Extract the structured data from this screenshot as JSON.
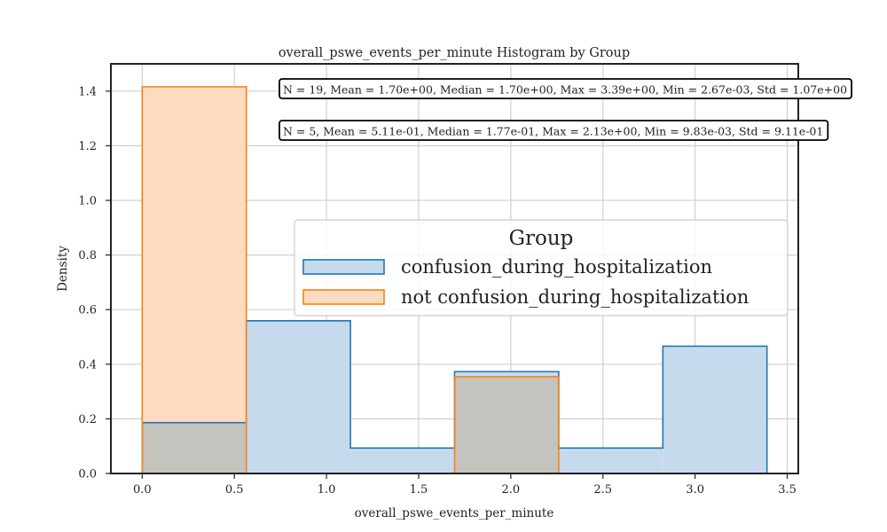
{
  "chart_data": {
    "type": "histogram",
    "title": "overall_pswe_events_per_minute Histogram by Group",
    "xlabel": "overall_pswe_events_per_minute",
    "ylabel": "Density",
    "xlim": [
      -0.17,
      3.56
    ],
    "ylim": [
      0,
      1.5
    ],
    "xticks": [
      "0.0",
      "0.5",
      "1.0",
      "1.5",
      "2.0",
      "2.5",
      "3.0",
      "3.5"
    ],
    "yticks": [
      "0.0",
      "0.2",
      "0.4",
      "0.6",
      "0.8",
      "1.0",
      "1.2",
      "1.4"
    ],
    "grid": true,
    "bin_edges": [
      0.0,
      0.565,
      1.13,
      1.695,
      2.26,
      2.825,
      3.39
    ],
    "series": [
      {
        "name": "confusion_during_hospitalization",
        "values": [
          0.186,
          0.559,
          0.093,
          0.373,
          0.093,
          0.466
        ],
        "color": "#1f77b4",
        "fill": "#c5dbed"
      },
      {
        "name": "not confusion_during_hospitalization",
        "values": [
          1.416,
          0.0,
          0.0,
          0.354,
          0.0,
          0.0
        ],
        "color": "#ff7f0e",
        "fill": "#fcdcc0"
      }
    ],
    "overlap_fill": "#c4c3be",
    "annotations": [
      "N = 19, Mean = 1.70e+00, Median = 1.70e+00, Max = 3.39e+00, Min = 2.67e-03, Std = 1.07e+00",
      "N = 5, Mean = 5.11e-01, Median = 1.77e-01, Max = 2.13e+00, Min = 9.83e-03, Std = 9.11e-01"
    ],
    "legend": {
      "title": "Group",
      "placement": "center-right"
    }
  }
}
